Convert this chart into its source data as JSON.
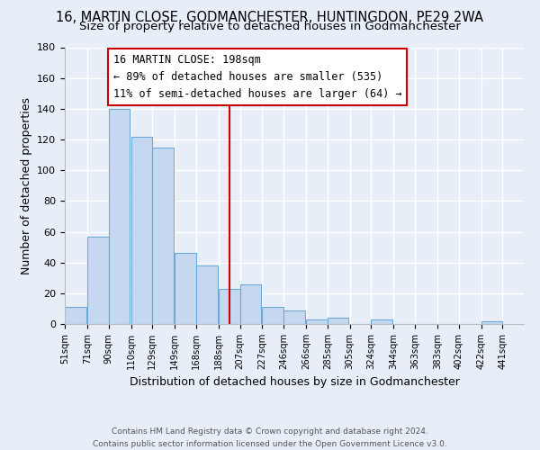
{
  "title": "16, MARTIN CLOSE, GODMANCHESTER, HUNTINGDON, PE29 2WA",
  "subtitle": "Size of property relative to detached houses in Godmanchester",
  "xlabel": "Distribution of detached houses by size in Godmanchester",
  "ylabel": "Number of detached properties",
  "bar_left_edges": [
    51,
    71,
    90,
    110,
    129,
    149,
    168,
    188,
    207,
    227,
    246,
    266,
    285,
    305,
    324,
    344,
    363,
    383,
    402,
    422
  ],
  "bar_heights": [
    11,
    57,
    140,
    122,
    115,
    46,
    38,
    23,
    26,
    11,
    9,
    3,
    4,
    0,
    3,
    0,
    0,
    0,
    0,
    2
  ],
  "bar_widths": [
    19,
    19,
    19,
    19,
    19,
    19,
    19,
    19,
    19,
    19,
    19,
    19,
    19,
    19,
    19,
    19,
    19,
    19,
    19,
    19
  ],
  "bar_color": "#c5d8f0",
  "bar_edge_color": "#6aaad4",
  "tick_labels": [
    "51sqm",
    "71sqm",
    "90sqm",
    "110sqm",
    "129sqm",
    "149sqm",
    "168sqm",
    "188sqm",
    "207sqm",
    "227sqm",
    "246sqm",
    "266sqm",
    "285sqm",
    "305sqm",
    "324sqm",
    "344sqm",
    "363sqm",
    "383sqm",
    "402sqm",
    "422sqm",
    "441sqm"
  ],
  "vline_x": 198,
  "vline_color": "#cc0000",
  "ylim": [
    0,
    180
  ],
  "yticks": [
    0,
    20,
    40,
    60,
    80,
    100,
    120,
    140,
    160,
    180
  ],
  "annotation_text_line1": "16 MARTIN CLOSE: 198sqm",
  "annotation_text_line2": "← 89% of detached houses are smaller (535)",
  "annotation_text_line3": "11% of semi-detached houses are larger (64) →",
  "footer_line1": "Contains HM Land Registry data © Crown copyright and database right 2024.",
  "footer_line2": "Contains public sector information licensed under the Open Government Licence v3.0.",
  "background_color": "#e8eef8",
  "plot_bg_color": "#e8eef8",
  "grid_color": "#ffffff",
  "title_fontsize": 10.5,
  "subtitle_fontsize": 9.5,
  "ylabel_text": "Number of detached properties"
}
